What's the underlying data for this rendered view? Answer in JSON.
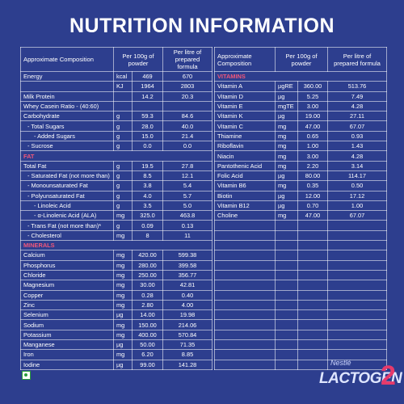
{
  "title": "NUTRITION INFORMATION",
  "left_table": {
    "header": [
      "Approximate Composition",
      "Per 100g of powder",
      "Per litre of prepared formula"
    ],
    "rows": [
      [
        "Energy",
        "kcal",
        "469",
        "670"
      ],
      [
        null,
        "KJ",
        "1964",
        "2803"
      ],
      [
        "Milk Protein",
        null,
        "14.2",
        "20.3"
      ],
      [
        "Whey Casein Ratio - (40:60)",
        null,
        null,
        null
      ],
      [
        "Carbohydrate",
        "g",
        "59.3",
        "84.6"
      ],
      [
        "- Total Sugars",
        "g",
        "28.0",
        "40.0"
      ],
      [
        "- Added Sugars",
        "g",
        "15.0",
        "21.4"
      ],
      [
        "- Sucrose",
        "g",
        "0.0",
        "0.0"
      ],
      "FAT",
      [
        "Total Fat",
        "g",
        "19.5",
        "27.8"
      ],
      [
        "- Saturated Fat (not more than)",
        "g",
        "8.5",
        "12.1"
      ],
      [
        "- Monounsaturated Fat",
        "g",
        "3.8",
        "5.4"
      ],
      [
        "- Polyunsaturated Fat",
        "g",
        "4.0",
        "5.7"
      ],
      [
        "- Linoleic Acid",
        "g",
        "3.5",
        "5.0"
      ],
      [
        "- α-Linolenic Acid (ALA)",
        "mg",
        "325.0",
        "463.8"
      ],
      [
        "- Trans Fat (not more than)*",
        "g",
        "0.09",
        "0.13"
      ],
      [
        "- Cholesterol",
        "mg",
        "8",
        "11"
      ],
      "MINERALS",
      [
        "Calcium",
        "mg",
        "420.00",
        "599.38"
      ],
      [
        "Phosphorus",
        "mg",
        "280.00",
        "399.58"
      ],
      [
        "Chloride",
        "mg",
        "250.00",
        "356.77"
      ],
      [
        "Magnesium",
        "mg",
        "30.00",
        "42.81"
      ],
      [
        "Copper",
        "mg",
        "0.28",
        "0.40"
      ],
      [
        "Zinc",
        "mg",
        "2.80",
        "4.00"
      ],
      [
        "Selenium",
        "µg",
        "14.00",
        "19.98"
      ],
      [
        "Sodium",
        "mg",
        "150.00",
        "214.06"
      ],
      [
        "Potassium",
        "mg",
        "400.00",
        "570.84"
      ],
      [
        "Manganese",
        "µg",
        "50.00",
        "71.35"
      ],
      [
        "Iron",
        "mg",
        "6.20",
        "8.85"
      ],
      [
        "Iodine",
        "µg",
        "99.00",
        "141.28"
      ]
    ]
  },
  "right_table": {
    "header": [
      "Approximate Composition",
      "Per 100g of powder",
      "Per litre of prepared formula"
    ],
    "rows": [
      "VITAMINS",
      [
        "Vitamin A",
        "µgRE",
        "360.00",
        "513.76"
      ],
      [
        "Vitamin D",
        "µg",
        "5.25",
        "7.49"
      ],
      [
        "Vitamin E",
        "mgTE",
        "3.00",
        "4.28"
      ],
      [
        "Vitamin K",
        "µg",
        "19.00",
        "27.11"
      ],
      [
        "Vitamin C",
        "mg",
        "47.00",
        "67.07"
      ],
      [
        "Thiamine",
        "mg",
        "0.65",
        "0.93"
      ],
      [
        "Riboflavin",
        "mg",
        "1.00",
        "1.43"
      ],
      [
        "Niacin",
        "mg",
        "3.00",
        "4.28"
      ],
      [
        "Pantothenic Acid",
        "mg",
        "2.20",
        "3.14"
      ],
      [
        "Folic Acid",
        "µg",
        "80.00",
        "114.17"
      ],
      [
        "Vitamin B6",
        "mg",
        "0.35",
        "0.50"
      ],
      [
        "Biotin",
        "µg",
        "12.00",
        "17.12"
      ],
      [
        "Vitamin B12",
        "µg",
        "0.70",
        "1.00"
      ],
      [
        "Choline",
        "mg",
        "47.00",
        "67.07"
      ]
    ]
  },
  "brand": {
    "maker": "Nestlé",
    "product": "LACTOGEN",
    "stage": "2"
  }
}
